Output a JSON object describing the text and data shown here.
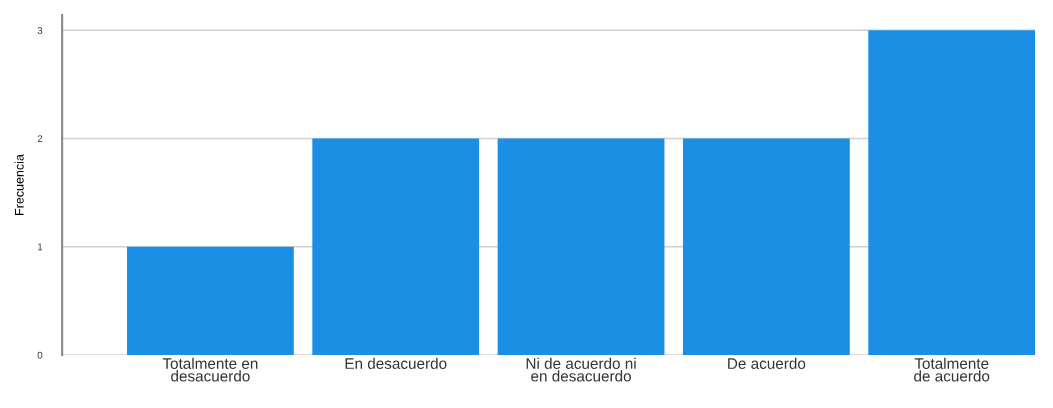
{
  "chart_data": {
    "type": "bar",
    "ylabel": "Frecuencia",
    "categories": [
      "Totalmente en desacuerdo",
      "En desacuerdo",
      "Ni de acuerdo ni en desacuerdo",
      "De acuerdo",
      "Totalmente de acuerdo"
    ],
    "values": [
      1,
      2,
      2,
      2,
      3
    ],
    "color": "#1a8fe3",
    "ylim": [
      0,
      3.14
    ],
    "yticks": [
      0,
      1,
      2,
      3
    ],
    "grid": "y"
  }
}
